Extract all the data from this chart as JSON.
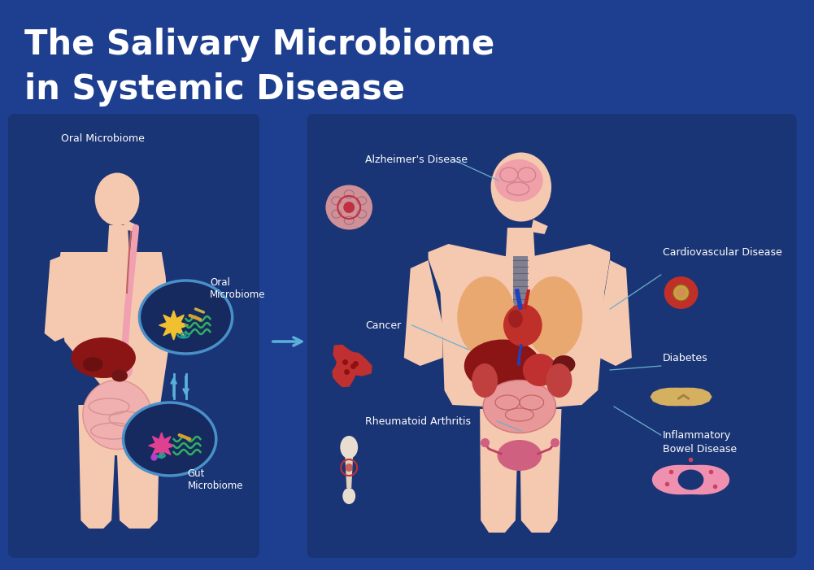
{
  "title_line1": "The Salivary Microbiome",
  "title_line2": "in Systemic Disease",
  "bg_color": "#1e3f8f",
  "panel_color": "#1a3575",
  "title_color": "#ffffff",
  "text_color": "#ffffff",
  "body_skin_color": "#f5c8b0",
  "body_edge_color": "#e8b8a0",
  "organ_lung_color": "#e8a870",
  "organ_heart_color": "#c0302a",
  "organ_liver_color": "#8b2020",
  "organ_intestine_color": "#e89898",
  "organ_kidney_color": "#c04848",
  "organ_repro_color": "#d06080",
  "organ_brain_color": "#f0a0a8",
  "organ_stomach_color": "#c03838",
  "trachea_color": "#909090",
  "arrow_color": "#5ab0d8",
  "circle_color": "#4a90c8",
  "line_color": "#6ab0d0",
  "left_panel_label": "Oral Microbiome",
  "oral_microbiome_label": "Oral\nMicrobiome",
  "gut_microbiome_label": "Gut\nMicrobiome"
}
